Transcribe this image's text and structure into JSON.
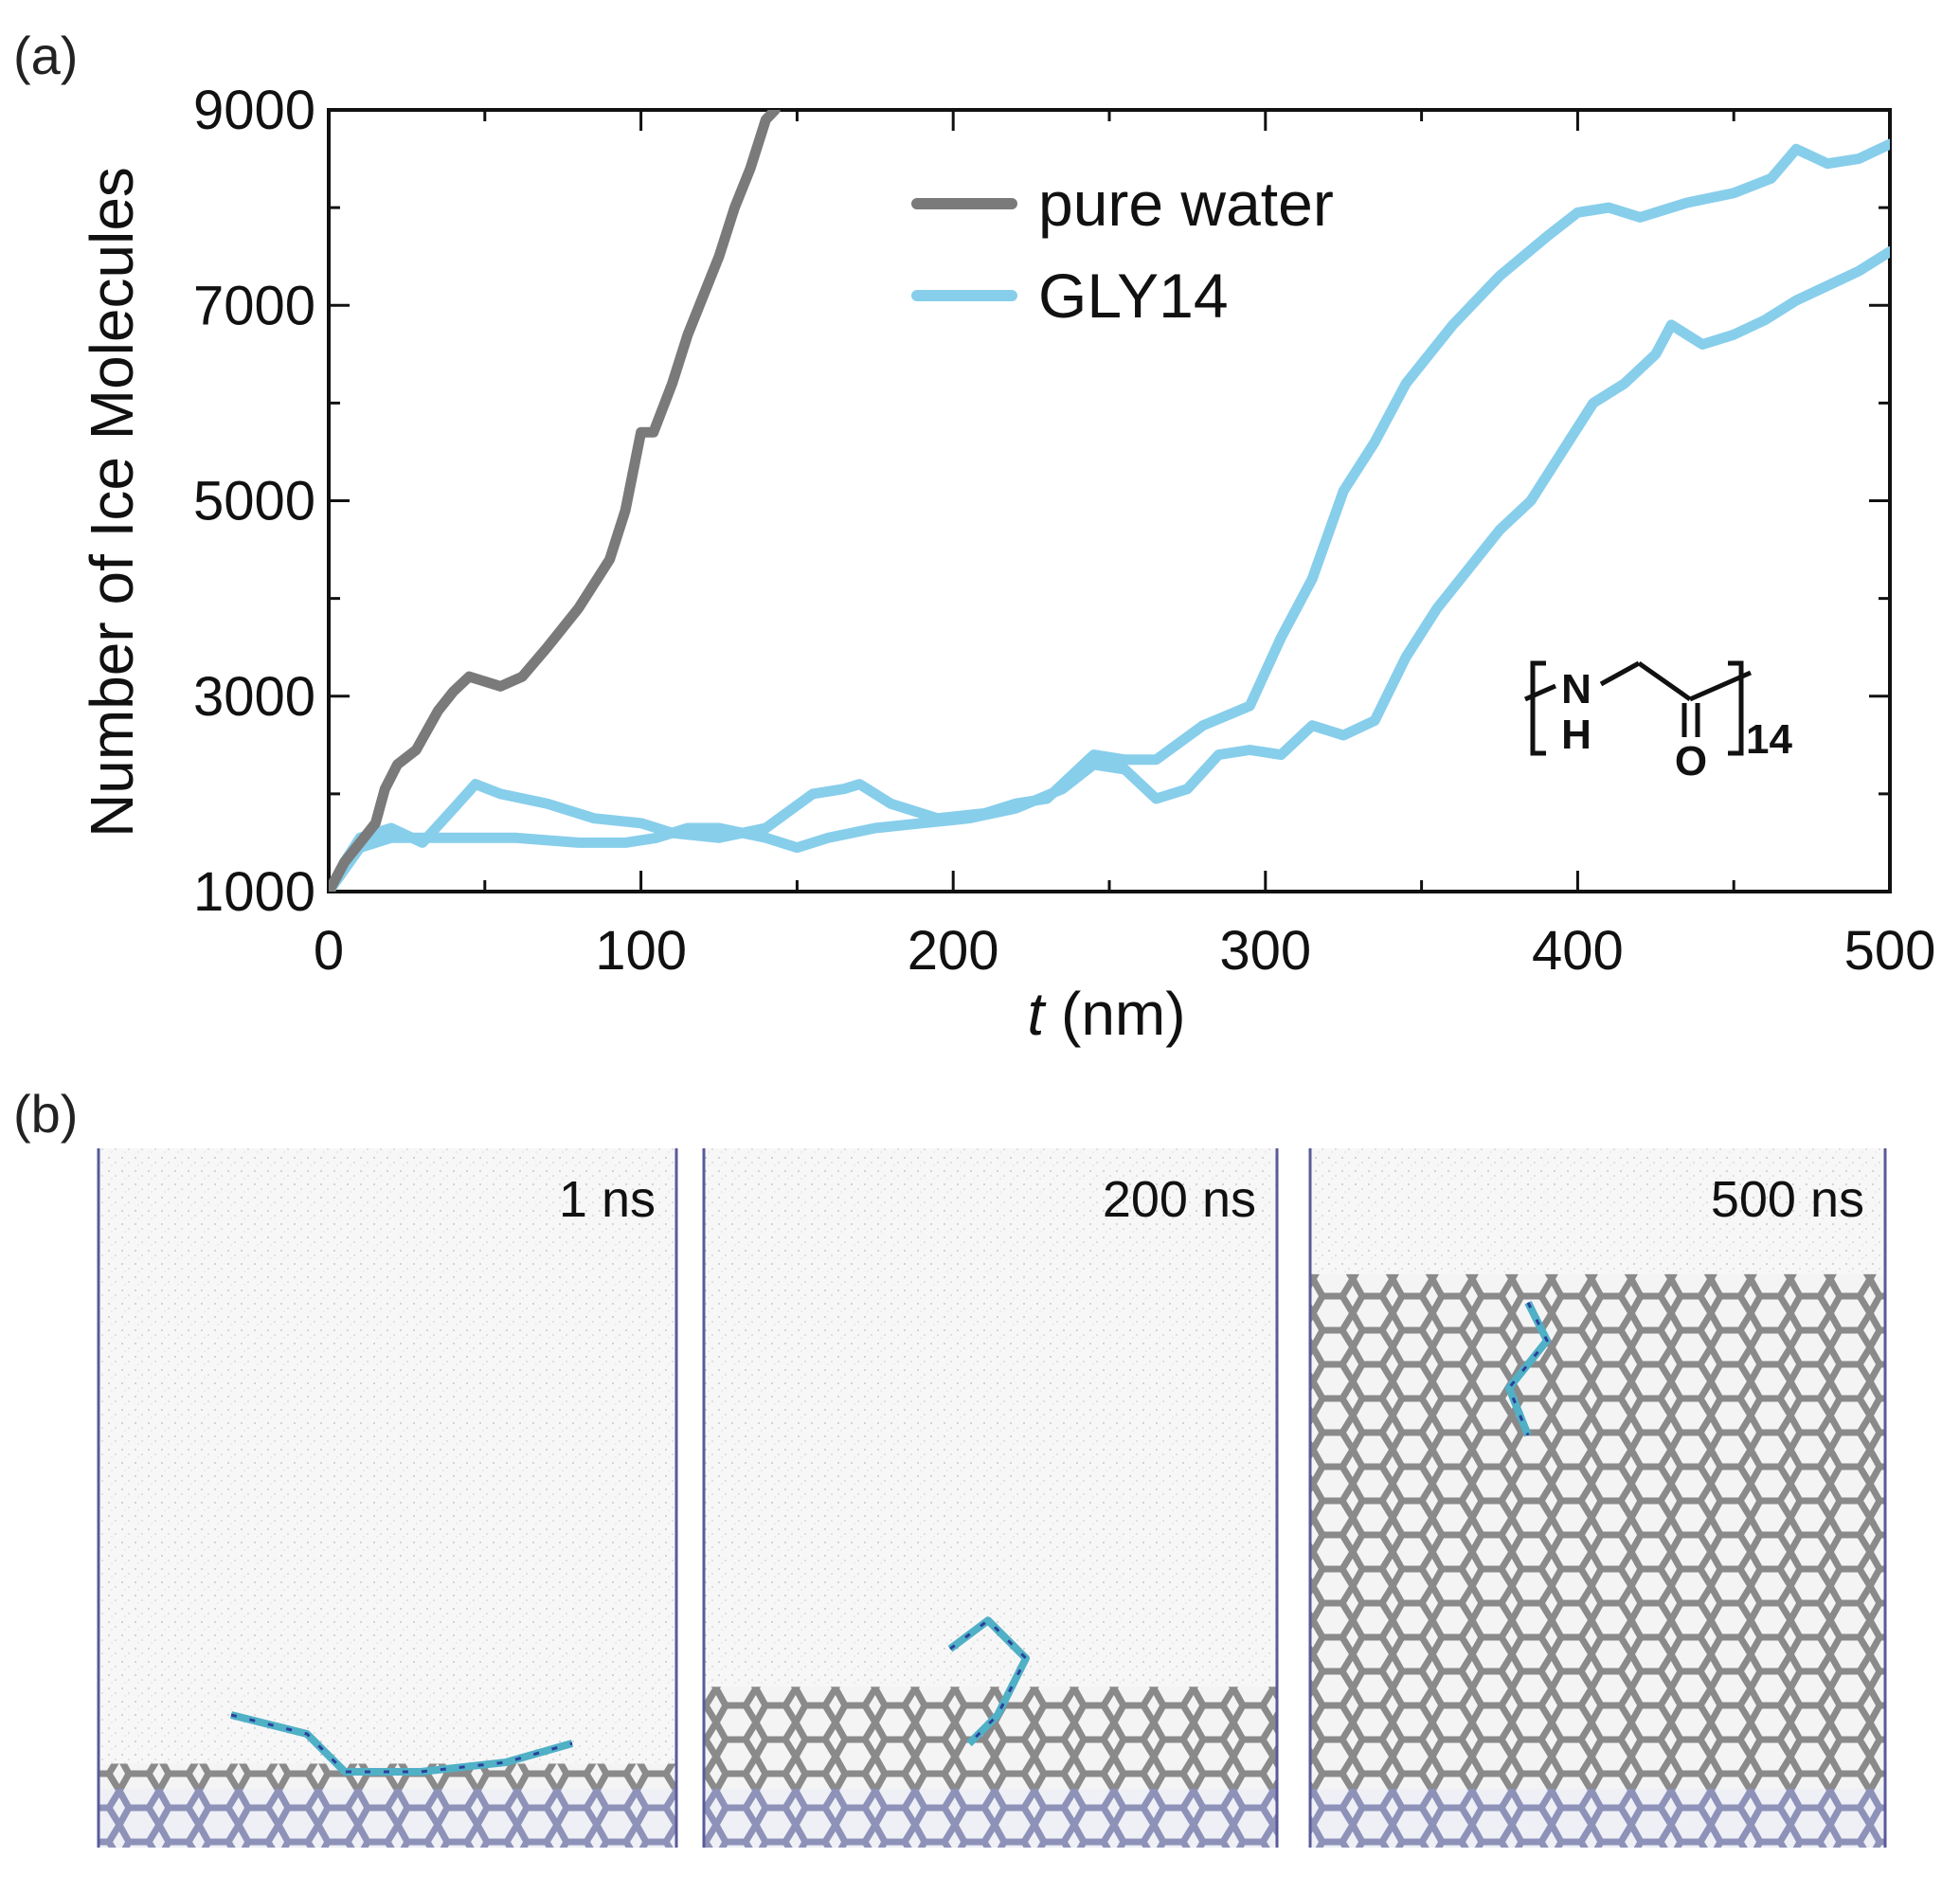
{
  "panel_a_label": "(a)",
  "panel_b_label": "(b)",
  "chart_data": {
    "type": "line",
    "xlabel_italic": "t",
    "xlabel_unit": "(nm)",
    "ylabel": "Number of Ice Molecules",
    "xlim": [
      0,
      500
    ],
    "ylim": [
      1000,
      9000
    ],
    "xticks": [
      0,
      100,
      200,
      300,
      400,
      500
    ],
    "xtick_labels": [
      "0",
      "100",
      "200",
      "300",
      "400",
      "500"
    ],
    "yticks": [
      1000,
      3000,
      5000,
      7000,
      9000
    ],
    "ytick_labels": [
      "1000",
      "3000",
      "5000",
      "7000",
      "9000"
    ],
    "grid": false,
    "legend_position": "top-center",
    "series": [
      {
        "name": "pure water",
        "color": "#7a7a7a",
        "points": [
          [
            0,
            1000
          ],
          [
            5,
            1300
          ],
          [
            10,
            1500
          ],
          [
            15,
            1700
          ],
          [
            18,
            2050
          ],
          [
            22,
            2300
          ],
          [
            28,
            2450
          ],
          [
            35,
            2850
          ],
          [
            40,
            3050
          ],
          [
            45,
            3200
          ],
          [
            50,
            3150
          ],
          [
            55,
            3100
          ],
          [
            62,
            3200
          ],
          [
            70,
            3500
          ],
          [
            80,
            3900
          ],
          [
            90,
            4400
          ],
          [
            95,
            4900
          ],
          [
            100,
            5700
          ],
          [
            104,
            5700
          ],
          [
            110,
            6200
          ],
          [
            115,
            6700
          ],
          [
            120,
            7100
          ],
          [
            125,
            7500
          ],
          [
            130,
            8000
          ],
          [
            135,
            8400
          ],
          [
            140,
            8900
          ],
          [
            143,
            9000
          ]
        ]
      },
      {
        "name": "GLY14",
        "color": "#87ceeb",
        "points": [
          [
            0,
            1000
          ],
          [
            5,
            1300
          ],
          [
            10,
            1550
          ],
          [
            20,
            1650
          ],
          [
            30,
            1500
          ],
          [
            40,
            1850
          ],
          [
            47,
            2100
          ],
          [
            55,
            2000
          ],
          [
            70,
            1900
          ],
          [
            85,
            1750
          ],
          [
            100,
            1700
          ],
          [
            110,
            1600
          ],
          [
            125,
            1550
          ],
          [
            140,
            1650
          ],
          [
            155,
            2000
          ],
          [
            165,
            2050
          ],
          [
            170,
            2100
          ],
          [
            180,
            1900
          ],
          [
            195,
            1750
          ],
          [
            210,
            1800
          ],
          [
            220,
            1900
          ],
          [
            230,
            1950
          ],
          [
            245,
            2400
          ],
          [
            255,
            2350
          ],
          [
            265,
            2350
          ],
          [
            280,
            2700
          ],
          [
            295,
            2900
          ],
          [
            305,
            3600
          ],
          [
            315,
            4200
          ],
          [
            325,
            5100
          ],
          [
            335,
            5600
          ],
          [
            345,
            6200
          ],
          [
            360,
            6800
          ],
          [
            375,
            7300
          ],
          [
            390,
            7700
          ],
          [
            400,
            7950
          ],
          [
            410,
            8000
          ],
          [
            420,
            7900
          ],
          [
            435,
            8050
          ],
          [
            450,
            8150
          ],
          [
            462,
            8300
          ],
          [
            470,
            8600
          ],
          [
            480,
            8450
          ],
          [
            490,
            8500
          ],
          [
            500,
            8650
          ]
        ]
      },
      {
        "name": "",
        "color": "#87ceeb",
        "points": [
          [
            0,
            1000
          ],
          [
            10,
            1450
          ],
          [
            20,
            1550
          ],
          [
            40,
            1550
          ],
          [
            60,
            1550
          ],
          [
            80,
            1500
          ],
          [
            95,
            1500
          ],
          [
            105,
            1550
          ],
          [
            115,
            1650
          ],
          [
            125,
            1650
          ],
          [
            140,
            1550
          ],
          [
            150,
            1450
          ],
          [
            160,
            1550
          ],
          [
            175,
            1650
          ],
          [
            190,
            1700
          ],
          [
            205,
            1750
          ],
          [
            220,
            1850
          ],
          [
            235,
            2050
          ],
          [
            245,
            2300
          ],
          [
            255,
            2250
          ],
          [
            265,
            1950
          ],
          [
            275,
            2050
          ],
          [
            285,
            2400
          ],
          [
            295,
            2450
          ],
          [
            305,
            2400
          ],
          [
            315,
            2700
          ],
          [
            325,
            2600
          ],
          [
            335,
            2750
          ],
          [
            345,
            3400
          ],
          [
            355,
            3900
          ],
          [
            365,
            4300
          ],
          [
            375,
            4700
          ],
          [
            385,
            5000
          ],
          [
            395,
            5500
          ],
          [
            405,
            6000
          ],
          [
            415,
            6200
          ],
          [
            425,
            6500
          ],
          [
            430,
            6800
          ],
          [
            440,
            6600
          ],
          [
            450,
            6700
          ],
          [
            460,
            6850
          ],
          [
            470,
            7050
          ],
          [
            480,
            7200
          ],
          [
            490,
            7350
          ],
          [
            500,
            7550
          ]
        ]
      }
    ]
  },
  "chemical_structure": {
    "atom_n": "N",
    "atom_h": "H",
    "atom_o": "O",
    "subscript": "14"
  },
  "snapshots": [
    {
      "label": "1 ns",
      "ice_fill": 0.12
    },
    {
      "label": "200 ns",
      "ice_fill": 0.23
    },
    {
      "label": "500 ns",
      "ice_fill": 0.82
    }
  ]
}
